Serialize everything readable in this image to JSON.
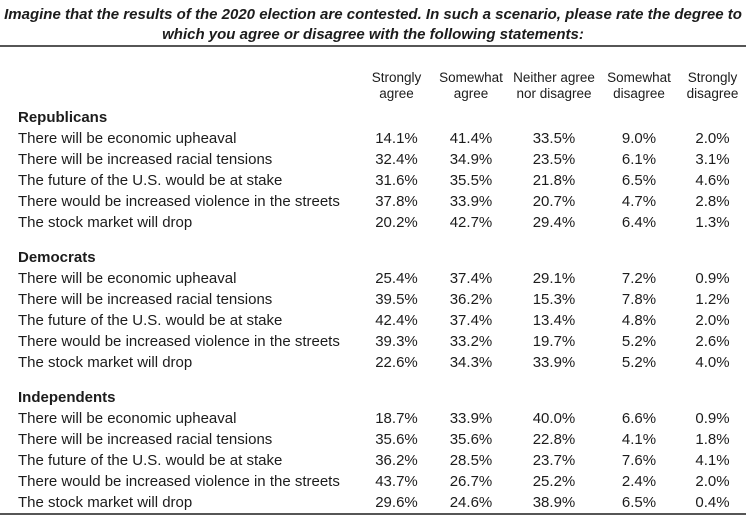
{
  "title": {
    "line1": "Imagine that the results of the 2020 election are contested. In such a scenario, please rate the degree to",
    "line2": "which you agree or disagree with the following statements:"
  },
  "table": {
    "columns": [
      "Strongly agree",
      "Somewhat agree",
      "Neither agree nor disagree",
      "Somewhat disagree",
      "Strongly disagree"
    ],
    "sections": [
      {
        "group": "Republicans",
        "rows": [
          {
            "statement": "There will be economic upheaval",
            "values": [
              "14.1%",
              "41.4%",
              "33.5%",
              "9.0%",
              "2.0%"
            ]
          },
          {
            "statement": "There will be increased racial tensions",
            "values": [
              "32.4%",
              "34.9%",
              "23.5%",
              "6.1%",
              "3.1%"
            ]
          },
          {
            "statement": "The future of the U.S. would be at stake",
            "values": [
              "31.6%",
              "35.5%",
              "21.8%",
              "6.5%",
              "4.6%"
            ]
          },
          {
            "statement": "There would be increased violence in the streets",
            "values": [
              "37.8%",
              "33.9%",
              "20.7%",
              "4.7%",
              "2.8%"
            ]
          },
          {
            "statement": "The stock market will drop",
            "values": [
              "20.2%",
              "42.7%",
              "29.4%",
              "6.4%",
              "1.3%"
            ]
          }
        ]
      },
      {
        "group": "Democrats",
        "rows": [
          {
            "statement": "There will be economic upheaval",
            "values": [
              "25.4%",
              "37.4%",
              "29.1%",
              "7.2%",
              "0.9%"
            ]
          },
          {
            "statement": "There will be increased racial tensions",
            "values": [
              "39.5%",
              "36.2%",
              "15.3%",
              "7.8%",
              "1.2%"
            ]
          },
          {
            "statement": "The future of the U.S. would be at stake",
            "values": [
              "42.4%",
              "37.4%",
              "13.4%",
              "4.8%",
              "2.0%"
            ]
          },
          {
            "statement": "There would be increased violence in the streets",
            "values": [
              "39.3%",
              "33.2%",
              "19.7%",
              "5.2%",
              "2.6%"
            ]
          },
          {
            "statement": "The stock market will drop",
            "values": [
              "22.6%",
              "34.3%",
              "33.9%",
              "5.2%",
              "4.0%"
            ]
          }
        ]
      },
      {
        "group": "Independents",
        "rows": [
          {
            "statement": "There will be economic upheaval",
            "values": [
              "18.7%",
              "33.9%",
              "40.0%",
              "6.6%",
              "0.9%"
            ]
          },
          {
            "statement": "There will be increased racial tensions",
            "values": [
              "35.6%",
              "35.6%",
              "22.8%",
              "4.1%",
              "1.8%"
            ]
          },
          {
            "statement": "The future of the U.S. would be at stake",
            "values": [
              "36.2%",
              "28.5%",
              "23.7%",
              "7.6%",
              "4.1%"
            ]
          },
          {
            "statement": "There would be increased violence in the streets",
            "values": [
              "43.7%",
              "26.7%",
              "25.2%",
              "2.4%",
              "2.0%"
            ]
          },
          {
            "statement": "The stock market will drop",
            "values": [
              "29.6%",
              "24.6%",
              "38.9%",
              "6.5%",
              "0.4%"
            ]
          }
        ]
      }
    ]
  },
  "colors": {
    "text": "#1c1c1c",
    "rule": "#565656",
    "background": "#ffffff"
  }
}
